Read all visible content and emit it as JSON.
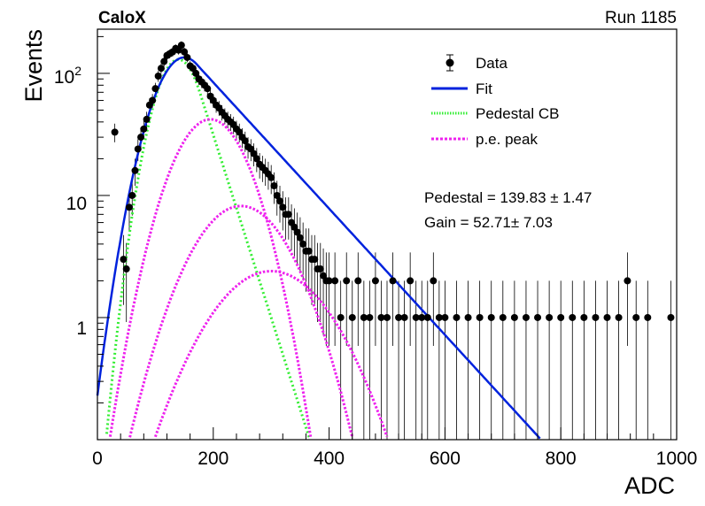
{
  "header": {
    "experiment": "CaloX",
    "run": "Run 1185"
  },
  "chart_data": {
    "type": "scatter",
    "xlabel": "ADC",
    "ylabel": "Events",
    "xlim": [
      0,
      1000
    ],
    "ylim": [
      0.1,
      230
    ],
    "yscale": "log",
    "x_ticks": [
      "0",
      "200",
      "400",
      "600",
      "800",
      "1000"
    ],
    "y_ticks": [
      "1",
      "10",
      "10^2"
    ],
    "legend_position": "top-right",
    "legend": [
      {
        "label": "Data",
        "style": "marker-errorbar",
        "color": "#000000"
      },
      {
        "label": "Fit",
        "style": "solid",
        "color": "#0022dd"
      },
      {
        "label": "Pedestal CB",
        "style": "dotted",
        "color": "#33ee33"
      },
      {
        "label": "p.e. peak",
        "style": "dashed",
        "color": "#ee22ee"
      }
    ],
    "annotations": [
      "Pedestal = 139.83 ± 1.47",
      "Gain = 52.71± 7.03"
    ],
    "series": [
      {
        "name": "Data",
        "x": [
          30,
          45,
          50,
          55,
          60,
          65,
          70,
          75,
          80,
          85,
          90,
          95,
          100,
          105,
          110,
          115,
          120,
          125,
          130,
          135,
          140,
          145,
          150,
          155,
          160,
          165,
          170,
          175,
          180,
          185,
          190,
          195,
          200,
          205,
          210,
          215,
          220,
          225,
          230,
          235,
          240,
          245,
          250,
          255,
          260,
          265,
          270,
          275,
          280,
          285,
          290,
          295,
          300,
          305,
          310,
          315,
          320,
          325,
          330,
          335,
          340,
          345,
          350,
          355,
          360,
          365,
          370,
          375,
          380,
          385,
          390,
          395,
          400,
          410,
          420,
          430,
          440,
          450,
          460,
          470,
          480,
          490,
          500,
          510,
          520,
          530,
          540,
          550,
          560,
          570,
          580,
          590,
          600,
          620,
          640,
          660,
          680,
          700,
          720,
          740,
          760,
          780,
          800,
          820,
          840,
          860,
          880,
          900,
          915,
          930,
          950,
          990
        ],
        "y": [
          33,
          3,
          2.5,
          8,
          10,
          16,
          24,
          30,
          35,
          42,
          55,
          60,
          75,
          95,
          110,
          125,
          140,
          145,
          150,
          160,
          155,
          170,
          150,
          135,
          115,
          110,
          100,
          90,
          85,
          80,
          75,
          65,
          60,
          55,
          52,
          48,
          45,
          42,
          40,
          38,
          35,
          33,
          30,
          28,
          25,
          24,
          22,
          20,
          18,
          17,
          16,
          15,
          14,
          12,
          10,
          9,
          8,
          7,
          7,
          6,
          5.5,
          5,
          4.5,
          4,
          3.5,
          3.5,
          3,
          3,
          2.5,
          2.5,
          2.2,
          2,
          2,
          2,
          1,
          2,
          1,
          2,
          1,
          1,
          2,
          1,
          1,
          2,
          1,
          1,
          2,
          1,
          1,
          1,
          2,
          1,
          1,
          1,
          1,
          1,
          1,
          1,
          1,
          1,
          1,
          1,
          1,
          1,
          1,
          1,
          1,
          1,
          2,
          1,
          1,
          1
        ]
      },
      {
        "name": "Fit",
        "params": {
          "A": 135,
          "mu": 150,
          "sigma": 42,
          "tail_slope": 84
        }
      },
      {
        "name": "Pedestal CB",
        "params": {
          "A": 130,
          "mu": 140,
          "sigma": 33,
          "tail_slope": 29
        }
      },
      {
        "name": "p.e. peak",
        "peaks": [
          {
            "mu": 195,
            "sigma": 50,
            "A": 42
          },
          {
            "mu": 248,
            "sigma": 65,
            "A": 8.2
          },
          {
            "mu": 300,
            "sigma": 80,
            "A": 2.4
          }
        ]
      }
    ]
  }
}
